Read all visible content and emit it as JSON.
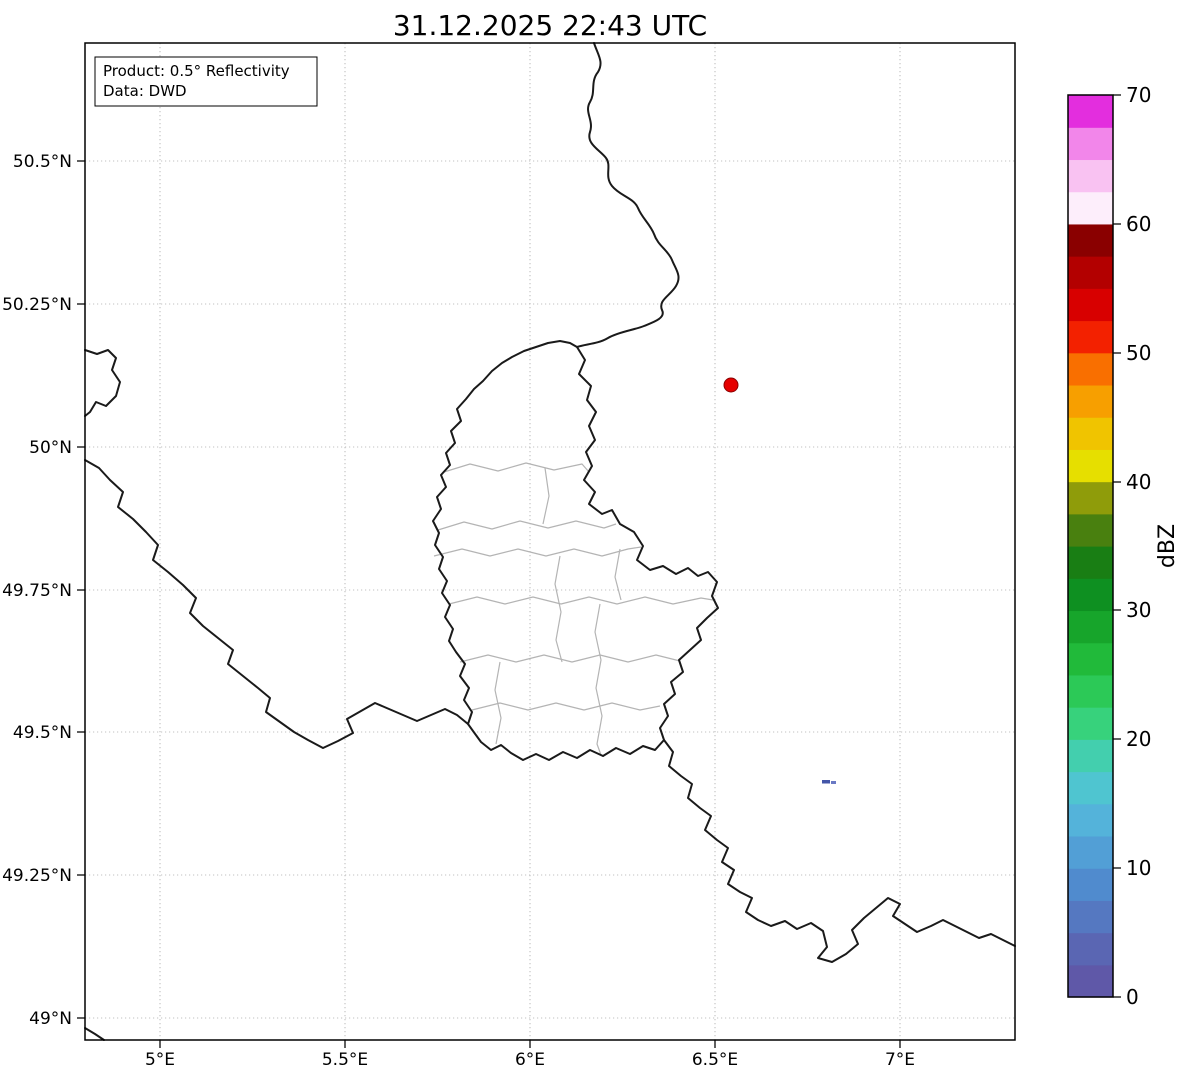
{
  "figure": {
    "title": "31.12.2025 22:43 UTC",
    "background": "#ffffff"
  },
  "annotation": {
    "product": "Product: 0.5° Reflectivity",
    "source": "Data: DWD"
  },
  "axes": {
    "x_ticks": [
      "5°E",
      "5.5°E",
      "6°E",
      "6.5°E",
      "7°E"
    ],
    "y_ticks": [
      "50.5°N",
      "50.25°N",
      "50°N",
      "49.75°N",
      "49.5°N",
      "49.25°N",
      "49°N"
    ],
    "grid_color": "#c0c0c0",
    "border_color": "#000000"
  },
  "map": {
    "country_border_color": "#1a1a1a",
    "canton_border_color": "#b4b4b4",
    "radar_marker_color": "#e50000",
    "radar_marker_edge_color": "#8b0000",
    "echo_color": "#4456a8"
  },
  "colorbar": {
    "label": "dBZ",
    "min": 0,
    "max": 70,
    "ticks": [
      "0",
      "10",
      "20",
      "30",
      "40",
      "50",
      "60",
      "70"
    ],
    "colors": [
      "#5f58a8",
      "#5a66b3",
      "#5578c1",
      "#508bce",
      "#529fd6",
      "#54b3da",
      "#4fc5d0",
      "#43cfae",
      "#37d27c",
      "#2cc957",
      "#21ba3a",
      "#17a52b",
      "#0e9021",
      "#197e14",
      "#49800f",
      "#8f9c0a",
      "#e6df00",
      "#f0c400",
      "#f79f00",
      "#f96f00",
      "#f32100",
      "#d80000",
      "#b30000",
      "#8a0000",
      "#fdeefb",
      "#f9c2f2",
      "#f286ea",
      "#e32ede"
    ]
  }
}
